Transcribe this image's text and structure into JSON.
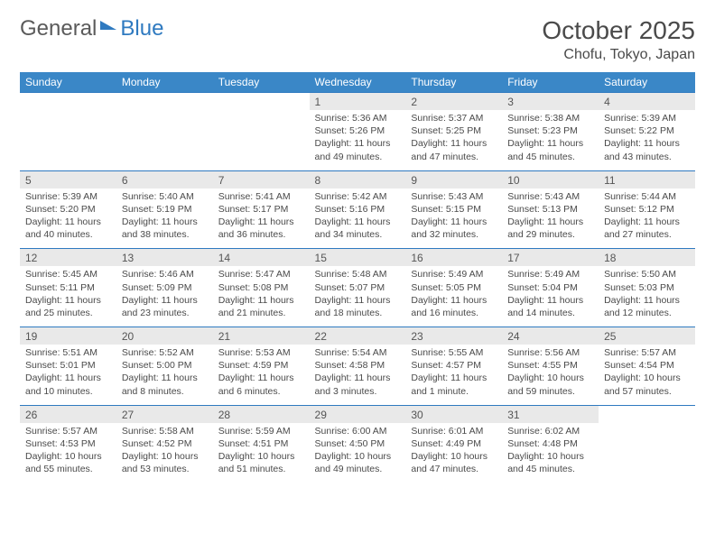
{
  "logo": {
    "part1": "General",
    "part2": "Blue"
  },
  "title": "October 2025",
  "location": "Chofu, Tokyo, Japan",
  "dayNames": [
    "Sunday",
    "Monday",
    "Tuesday",
    "Wednesday",
    "Thursday",
    "Friday",
    "Saturday"
  ],
  "colors": {
    "header_bg": "#3a87c7",
    "date_bg": "#e9e9e9",
    "border": "#2f7ac0",
    "text": "#4a4a4a"
  },
  "weeks": [
    [
      null,
      null,
      null,
      {
        "d": "1",
        "sr": "5:36 AM",
        "ss": "5:26 PM",
        "dl": "11 hours and 49 minutes."
      },
      {
        "d": "2",
        "sr": "5:37 AM",
        "ss": "5:25 PM",
        "dl": "11 hours and 47 minutes."
      },
      {
        "d": "3",
        "sr": "5:38 AM",
        "ss": "5:23 PM",
        "dl": "11 hours and 45 minutes."
      },
      {
        "d": "4",
        "sr": "5:39 AM",
        "ss": "5:22 PM",
        "dl": "11 hours and 43 minutes."
      }
    ],
    [
      {
        "d": "5",
        "sr": "5:39 AM",
        "ss": "5:20 PM",
        "dl": "11 hours and 40 minutes."
      },
      {
        "d": "6",
        "sr": "5:40 AM",
        "ss": "5:19 PM",
        "dl": "11 hours and 38 minutes."
      },
      {
        "d": "7",
        "sr": "5:41 AM",
        "ss": "5:17 PM",
        "dl": "11 hours and 36 minutes."
      },
      {
        "d": "8",
        "sr": "5:42 AM",
        "ss": "5:16 PM",
        "dl": "11 hours and 34 minutes."
      },
      {
        "d": "9",
        "sr": "5:43 AM",
        "ss": "5:15 PM",
        "dl": "11 hours and 32 minutes."
      },
      {
        "d": "10",
        "sr": "5:43 AM",
        "ss": "5:13 PM",
        "dl": "11 hours and 29 minutes."
      },
      {
        "d": "11",
        "sr": "5:44 AM",
        "ss": "5:12 PM",
        "dl": "11 hours and 27 minutes."
      }
    ],
    [
      {
        "d": "12",
        "sr": "5:45 AM",
        "ss": "5:11 PM",
        "dl": "11 hours and 25 minutes."
      },
      {
        "d": "13",
        "sr": "5:46 AM",
        "ss": "5:09 PM",
        "dl": "11 hours and 23 minutes."
      },
      {
        "d": "14",
        "sr": "5:47 AM",
        "ss": "5:08 PM",
        "dl": "11 hours and 21 minutes."
      },
      {
        "d": "15",
        "sr": "5:48 AM",
        "ss": "5:07 PM",
        "dl": "11 hours and 18 minutes."
      },
      {
        "d": "16",
        "sr": "5:49 AM",
        "ss": "5:05 PM",
        "dl": "11 hours and 16 minutes."
      },
      {
        "d": "17",
        "sr": "5:49 AM",
        "ss": "5:04 PM",
        "dl": "11 hours and 14 minutes."
      },
      {
        "d": "18",
        "sr": "5:50 AM",
        "ss": "5:03 PM",
        "dl": "11 hours and 12 minutes."
      }
    ],
    [
      {
        "d": "19",
        "sr": "5:51 AM",
        "ss": "5:01 PM",
        "dl": "11 hours and 10 minutes."
      },
      {
        "d": "20",
        "sr": "5:52 AM",
        "ss": "5:00 PM",
        "dl": "11 hours and 8 minutes."
      },
      {
        "d": "21",
        "sr": "5:53 AM",
        "ss": "4:59 PM",
        "dl": "11 hours and 6 minutes."
      },
      {
        "d": "22",
        "sr": "5:54 AM",
        "ss": "4:58 PM",
        "dl": "11 hours and 3 minutes."
      },
      {
        "d": "23",
        "sr": "5:55 AM",
        "ss": "4:57 PM",
        "dl": "11 hours and 1 minute."
      },
      {
        "d": "24",
        "sr": "5:56 AM",
        "ss": "4:55 PM",
        "dl": "10 hours and 59 minutes."
      },
      {
        "d": "25",
        "sr": "5:57 AM",
        "ss": "4:54 PM",
        "dl": "10 hours and 57 minutes."
      }
    ],
    [
      {
        "d": "26",
        "sr": "5:57 AM",
        "ss": "4:53 PM",
        "dl": "10 hours and 55 minutes."
      },
      {
        "d": "27",
        "sr": "5:58 AM",
        "ss": "4:52 PM",
        "dl": "10 hours and 53 minutes."
      },
      {
        "d": "28",
        "sr": "5:59 AM",
        "ss": "4:51 PM",
        "dl": "10 hours and 51 minutes."
      },
      {
        "d": "29",
        "sr": "6:00 AM",
        "ss": "4:50 PM",
        "dl": "10 hours and 49 minutes."
      },
      {
        "d": "30",
        "sr": "6:01 AM",
        "ss": "4:49 PM",
        "dl": "10 hours and 47 minutes."
      },
      {
        "d": "31",
        "sr": "6:02 AM",
        "ss": "4:48 PM",
        "dl": "10 hours and 45 minutes."
      },
      null
    ]
  ],
  "labels": {
    "sunrise": "Sunrise:",
    "sunset": "Sunset:",
    "daylight": "Daylight:"
  }
}
